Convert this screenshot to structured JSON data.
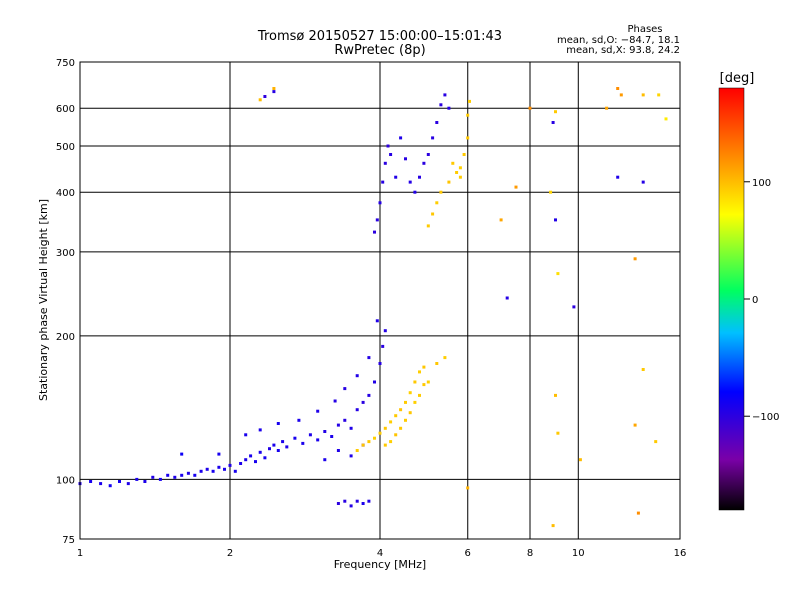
{
  "chart_data": {
    "type": "scatter",
    "title": "Tromsø 20150527 15:00:00–15:01:43",
    "subtitle": "RwPretec (8p)",
    "xlabel": "Frequency [MHz]",
    "ylabel": "Stationary phase Virtual Height [km]",
    "x_scale": "log",
    "y_scale": "log",
    "xlim": [
      1,
      16
    ],
    "ylim": [
      75,
      750
    ],
    "x_ticks": [
      1,
      2,
      4,
      6,
      8,
      10,
      16
    ],
    "x_tick_labels": [
      "1",
      "2",
      "4",
      "6",
      "8",
      "10",
      "16"
    ],
    "y_ticks": [
      75,
      100,
      200,
      300,
      400,
      500,
      600,
      750
    ],
    "y_tick_labels": [
      "75",
      "100",
      "200",
      "300",
      "400",
      "500",
      "600",
      "750"
    ],
    "grid": true,
    "phases_box": {
      "title": "Phases",
      "line1": "mean, sd,O: −84.7, 18.1",
      "line2": "mean, sd,X:  93.8, 24.2"
    },
    "colorbar": {
      "label": "[deg]",
      "range": [
        -180,
        180
      ],
      "ticks": [
        100,
        0,
        -100
      ],
      "tick_labels": [
        "100",
        "0",
        "−100"
      ],
      "colors": [
        "#000000",
        "#7a00a8",
        "#0000ff",
        "#00c0ff",
        "#00ff60",
        "#ffff00",
        "#ff8000",
        "#ff0000"
      ]
    },
    "series": [
      {
        "points": [
          [
            1.0,
            98,
            -95
          ],
          [
            1.05,
            99,
            -90
          ],
          [
            1.1,
            98,
            -92
          ],
          [
            1.15,
            97,
            -88
          ],
          [
            1.2,
            99,
            -90
          ],
          [
            1.25,
            98,
            -94
          ],
          [
            1.3,
            100,
            -91
          ],
          [
            1.35,
            99,
            -93
          ],
          [
            1.4,
            101,
            -95
          ],
          [
            1.45,
            100,
            -90
          ],
          [
            1.5,
            102,
            -92
          ],
          [
            1.55,
            101,
            -94
          ],
          [
            1.6,
            102,
            -91
          ],
          [
            1.65,
            103,
            -95
          ],
          [
            1.7,
            102,
            -90
          ],
          [
            1.75,
            104,
            -92
          ],
          [
            1.8,
            105,
            -93
          ],
          [
            1.85,
            104,
            -90
          ],
          [
            1.9,
            106,
            -92
          ],
          [
            1.95,
            105,
            -91
          ],
          [
            2.0,
            107,
            -94
          ],
          [
            2.05,
            104,
            -90
          ],
          [
            2.1,
            108,
            -92
          ],
          [
            2.15,
            110,
            -93
          ],
          [
            2.2,
            112,
            -91
          ],
          [
            2.25,
            109,
            -90
          ],
          [
            2.3,
            114,
            -92
          ],
          [
            2.35,
            111,
            -89
          ],
          [
            2.4,
            116,
            -95
          ],
          [
            2.45,
            118,
            -91
          ],
          [
            2.5,
            115,
            -90
          ],
          [
            2.55,
            120,
            -92
          ],
          [
            2.6,
            117,
            -94
          ],
          [
            2.7,
            122,
            -90
          ],
          [
            2.8,
            119,
            -92
          ],
          [
            2.9,
            124,
            -93
          ],
          [
            3.0,
            121,
            -91
          ],
          [
            3.1,
            126,
            -95
          ],
          [
            3.2,
            123,
            -92
          ],
          [
            3.3,
            130,
            -96
          ],
          [
            3.4,
            133,
            -98
          ],
          [
            3.5,
            128,
            -94
          ],
          [
            3.6,
            140,
            -96
          ],
          [
            3.7,
            145,
            -99
          ],
          [
            3.8,
            150,
            -97
          ],
          [
            3.9,
            160,
            -95
          ],
          [
            4.0,
            175,
            -97
          ],
          [
            4.05,
            190,
            -98
          ],
          [
            4.1,
            205,
            -96
          ],
          [
            3.95,
            215,
            -94
          ],
          [
            1.6,
            113,
            -85
          ],
          [
            1.9,
            113,
            -90
          ],
          [
            2.15,
            124,
            -91
          ],
          [
            2.3,
            127,
            -92
          ],
          [
            2.5,
            131,
            -90
          ],
          [
            2.75,
            133,
            -92
          ],
          [
            3.0,
            139,
            -94
          ],
          [
            3.25,
            146,
            -96
          ],
          [
            3.4,
            155,
            -97
          ],
          [
            3.6,
            165,
            -95
          ],
          [
            3.8,
            180,
            -96
          ],
          [
            3.5,
            112,
            -93
          ],
          [
            3.7,
            118,
            -95
          ],
          [
            3.3,
            115,
            -94
          ],
          [
            3.1,
            110,
            -92
          ],
          [
            3.3,
            89,
            -100
          ],
          [
            3.4,
            90,
            -98
          ],
          [
            3.5,
            88,
            -96
          ],
          [
            3.6,
            90,
            -97
          ],
          [
            3.7,
            89,
            -92
          ],
          [
            3.8,
            90,
            -95
          ],
          [
            3.9,
            330,
            -100
          ],
          [
            3.95,
            350,
            -98
          ],
          [
            4.0,
            380,
            -96
          ],
          [
            4.05,
            420,
            -97
          ],
          [
            4.1,
            460,
            -99
          ],
          [
            4.15,
            500,
            -101
          ],
          [
            4.2,
            480,
            -97
          ],
          [
            4.3,
            430,
            -95
          ],
          [
            4.4,
            520,
            -94
          ],
          [
            4.5,
            470,
            -98
          ],
          [
            4.6,
            420,
            -96
          ],
          [
            4.7,
            400,
            -95
          ],
          [
            4.8,
            430,
            -97
          ],
          [
            4.9,
            460,
            -99
          ],
          [
            5.0,
            480,
            -100
          ],
          [
            5.1,
            520,
            -98
          ],
          [
            5.2,
            560,
            -99
          ],
          [
            5.3,
            610,
            -100
          ],
          [
            5.4,
            640,
            -98
          ],
          [
            5.5,
            600,
            -96
          ],
          [
            2.35,
            635,
            -101
          ],
          [
            2.45,
            650,
            -97
          ],
          [
            9.8,
            230,
            -100
          ],
          [
            7.2,
            240,
            -96
          ],
          [
            9.0,
            350,
            -95
          ],
          [
            12.0,
            430,
            -94
          ],
          [
            13.5,
            420,
            -96
          ],
          [
            8.9,
            560,
            -98
          ]
        ]
      },
      {
        "points": [
          [
            3.8,
            120,
            95
          ],
          [
            3.9,
            122,
            92
          ],
          [
            4.0,
            125,
            94
          ],
          [
            4.1,
            128,
            96
          ],
          [
            4.2,
            132,
            93
          ],
          [
            4.3,
            136,
            95
          ],
          [
            4.4,
            140,
            97
          ],
          [
            4.5,
            145,
            94
          ],
          [
            4.6,
            152,
            92
          ],
          [
            4.7,
            160,
            95
          ],
          [
            4.8,
            168,
            93
          ],
          [
            4.9,
            172,
            96
          ],
          [
            3.7,
            118,
            97
          ],
          [
            3.6,
            115,
            94
          ],
          [
            4.2,
            120,
            92
          ],
          [
            4.4,
            128,
            95
          ],
          [
            4.6,
            138,
            96
          ],
          [
            4.8,
            150,
            94
          ],
          [
            5.0,
            160,
            92
          ],
          [
            5.2,
            175,
            96
          ],
          [
            5.4,
            180,
            93
          ],
          [
            4.1,
            118,
            95
          ],
          [
            4.3,
            124,
            97
          ],
          [
            4.5,
            133,
            94
          ],
          [
            4.7,
            145,
            92
          ],
          [
            4.9,
            158,
            95
          ],
          [
            5.0,
            340,
            94
          ],
          [
            5.1,
            360,
            96
          ],
          [
            5.2,
            380,
            93
          ],
          [
            5.3,
            400,
            95
          ],
          [
            5.5,
            420,
            97
          ],
          [
            5.7,
            440,
            94
          ],
          [
            5.8,
            450,
            92
          ],
          [
            5.9,
            480,
            95
          ],
          [
            6.0,
            520,
            96
          ],
          [
            6.0,
            580,
            94
          ],
          [
            6.05,
            620,
            93
          ],
          [
            5.6,
            460,
            95
          ],
          [
            5.8,
            430,
            94
          ],
          [
            2.3,
            625,
            100
          ],
          [
            2.45,
            660,
            105
          ],
          [
            9.0,
            590,
            95
          ],
          [
            8.8,
            400,
            90
          ],
          [
            9.1,
            270,
            85
          ],
          [
            9.0,
            150,
            100
          ],
          [
            9.1,
            125,
            95
          ],
          [
            8.9,
            80,
            100
          ],
          [
            11.4,
            600,
            110
          ],
          [
            12.0,
            660,
            120
          ],
          [
            12.2,
            640,
            115
          ],
          [
            13.0,
            290,
            115
          ],
          [
            13.5,
            640,
            100
          ],
          [
            14.5,
            640,
            90
          ],
          [
            15.0,
            570,
            80
          ],
          [
            13.0,
            130,
            110
          ],
          [
            13.5,
            170,
            95
          ],
          [
            14.3,
            120,
            95
          ],
          [
            13.2,
            85,
            120
          ],
          [
            6.0,
            96,
            105
          ],
          [
            7.0,
            350,
            110
          ],
          [
            7.5,
            410,
            115
          ],
          [
            8.0,
            600,
            120
          ],
          [
            10.1,
            110,
            100
          ]
        ]
      }
    ]
  }
}
